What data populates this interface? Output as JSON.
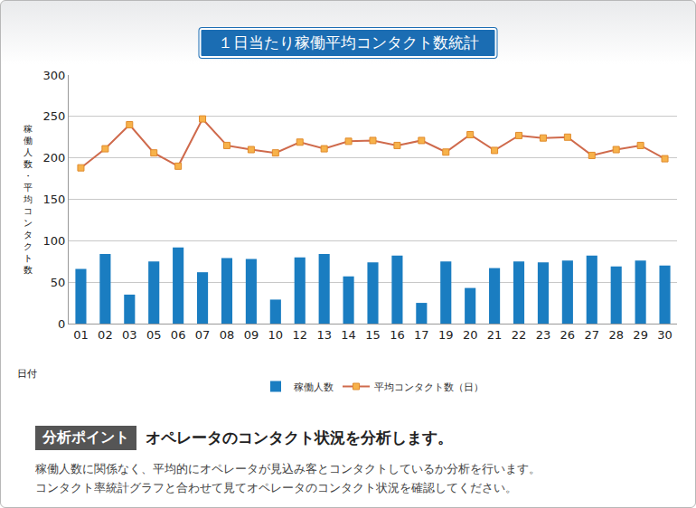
{
  "chart_data": {
    "type": "bar",
    "title": "１日当たり稼働平均コンタクト数統計",
    "y_label": "稼働人数・平均コンタクト数",
    "x_label": "日付",
    "categories": [
      "01",
      "02",
      "03",
      "05",
      "06",
      "07",
      "08",
      "09",
      "10",
      "12",
      "13",
      "14",
      "15",
      "16",
      "17",
      "19",
      "20",
      "21",
      "22",
      "23",
      "26",
      "27",
      "28",
      "29",
      "30"
    ],
    "series": [
      {
        "name": "稼働人数",
        "type": "bar",
        "color": "#1a7dc1",
        "values": [
          66,
          84,
          35,
          75,
          92,
          62,
          79,
          78,
          29,
          80,
          84,
          57,
          74,
          82,
          25,
          75,
          43,
          67,
          75,
          74,
          76,
          82,
          69,
          76,
          70
        ]
      },
      {
        "name": "平均コンタクト数（日）",
        "type": "line",
        "color": "#cf6a4c",
        "marker": "square",
        "values": [
          188,
          211,
          240,
          206,
          190,
          247,
          215,
          210,
          206,
          219,
          211,
          220,
          221,
          215,
          221,
          207,
          228,
          209,
          227,
          224,
          225,
          203,
          210,
          215,
          199
        ]
      }
    ],
    "ylim": [
      0,
      300
    ],
    "yticks": [
      0,
      50,
      100,
      150,
      200,
      250,
      300
    ],
    "grid": true,
    "legend": "bottom"
  },
  "analysis": {
    "label": "分析ポイント",
    "heading": "オペレータのコンタクト状況を分析します。",
    "text": [
      "稼働人数に関係なく、平均的にオペレータが見込み客とコンタクトしているか分析を行います。",
      "コンタクト率統計グラフと合わせて見てオペレータのコンタクト状況を確認してください。"
    ]
  }
}
